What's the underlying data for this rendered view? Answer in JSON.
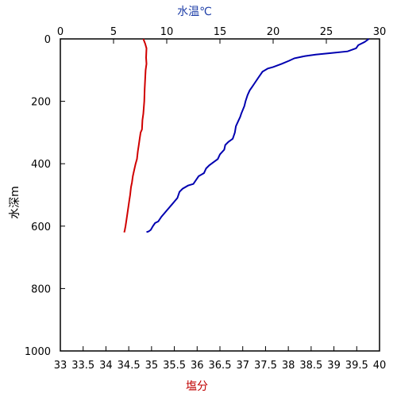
{
  "chart_data": {
    "type": "line",
    "top_axis": {
      "label": "水温℃",
      "label_color": "#1f3fa8",
      "range": [
        0,
        30
      ],
      "ticks": [
        "0",
        "5",
        "10",
        "15",
        "20",
        "25",
        "30"
      ]
    },
    "bottom_axis": {
      "label": "塩分",
      "label_color": "#c00000",
      "range": [
        33,
        40
      ],
      "ticks": [
        "33",
        "33.5",
        "34",
        "34.5",
        "35",
        "35.5",
        "36",
        "36.5",
        "37",
        "37.5",
        "38",
        "38.5",
        "39",
        "39.5",
        "40"
      ]
    },
    "left_axis": {
      "label": "水深m",
      "range": [
        0,
        1000
      ],
      "inverted": true,
      "ticks": [
        "0",
        "200",
        "400",
        "600",
        "800",
        "1000"
      ]
    },
    "grid": false,
    "series": [
      {
        "axis": "top",
        "color": "#0000b0",
        "points": [
          [
            29.0,
            0
          ],
          [
            28.6,
            10
          ],
          [
            28.0,
            20
          ],
          [
            27.8,
            30
          ],
          [
            27.0,
            40
          ],
          [
            25.5,
            45
          ],
          [
            24.0,
            50
          ],
          [
            23.0,
            55
          ],
          [
            22.0,
            62
          ],
          [
            21.5,
            70
          ],
          [
            20.8,
            80
          ],
          [
            20.0,
            90
          ],
          [
            19.5,
            95
          ],
          [
            19.0,
            105
          ],
          [
            18.8,
            115
          ],
          [
            18.6,
            125
          ],
          [
            18.3,
            140
          ],
          [
            18.0,
            155
          ],
          [
            17.8,
            165
          ],
          [
            17.6,
            180
          ],
          [
            17.4,
            200
          ],
          [
            17.3,
            215
          ],
          [
            17.0,
            240
          ],
          [
            16.9,
            250
          ],
          [
            16.7,
            265
          ],
          [
            16.5,
            280
          ],
          [
            16.4,
            300
          ],
          [
            16.2,
            320
          ],
          [
            15.8,
            330
          ],
          [
            15.5,
            340
          ],
          [
            15.4,
            355
          ],
          [
            15.0,
            370
          ],
          [
            14.8,
            385
          ],
          [
            14.4,
            395
          ],
          [
            14.0,
            405
          ],
          [
            13.7,
            415
          ],
          [
            13.5,
            430
          ],
          [
            13.0,
            440
          ],
          [
            12.8,
            450
          ],
          [
            12.5,
            465
          ],
          [
            12.0,
            470
          ],
          [
            11.5,
            480
          ],
          [
            11.2,
            490
          ],
          [
            11.0,
            510
          ],
          [
            10.5,
            530
          ],
          [
            10.0,
            550
          ],
          [
            9.5,
            570
          ],
          [
            9.2,
            585
          ],
          [
            8.9,
            590
          ],
          [
            8.7,
            600
          ],
          [
            8.5,
            612
          ],
          [
            8.3,
            617
          ],
          [
            8.1,
            619
          ]
        ]
      },
      {
        "axis": "bottom",
        "color": "#d00000",
        "points": [
          [
            34.82,
            0
          ],
          [
            34.86,
            15
          ],
          [
            34.89,
            30
          ],
          [
            34.88,
            60
          ],
          [
            34.89,
            80
          ],
          [
            34.87,
            100
          ],
          [
            34.86,
            130
          ],
          [
            34.85,
            160
          ],
          [
            34.84,
            200
          ],
          [
            34.82,
            240
          ],
          [
            34.8,
            260
          ],
          [
            34.79,
            290
          ],
          [
            34.76,
            300
          ],
          [
            34.74,
            320
          ],
          [
            34.72,
            340
          ],
          [
            34.7,
            360
          ],
          [
            34.68,
            385
          ],
          [
            34.65,
            400
          ],
          [
            34.62,
            420
          ],
          [
            34.59,
            440
          ],
          [
            34.57,
            460
          ],
          [
            34.55,
            475
          ],
          [
            34.53,
            500
          ],
          [
            34.51,
            520
          ],
          [
            34.48,
            550
          ],
          [
            34.45,
            580
          ],
          [
            34.43,
            600
          ],
          [
            34.41,
            615
          ],
          [
            34.4,
            620
          ]
        ]
      }
    ]
  }
}
